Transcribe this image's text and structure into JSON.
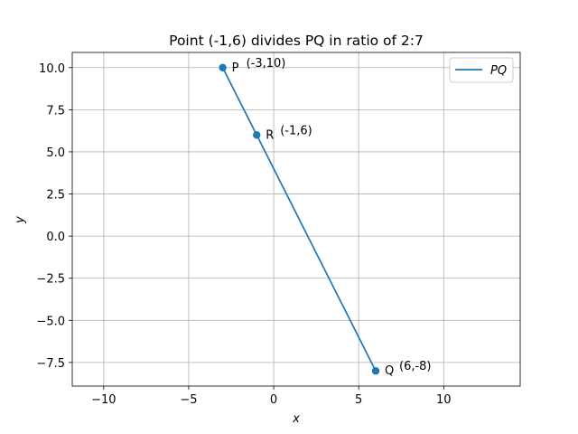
{
  "chart_data": {
    "type": "line",
    "title": "Point (-1,6) divides PQ in ratio of 2:7",
    "xlabel": "x",
    "ylabel": "y",
    "xlim": [
      -11.85,
      14.5
    ],
    "ylim": [
      -8.9,
      10.9
    ],
    "xticks": [
      -10,
      -5,
      0,
      5,
      10
    ],
    "xtick_labels": [
      "−10",
      "−5",
      "0",
      "5",
      "10"
    ],
    "yticks": [
      -7.5,
      -5.0,
      -2.5,
      0.0,
      2.5,
      5.0,
      7.5,
      10.0
    ],
    "ytick_labels": [
      "−7.5",
      "−5.0",
      "−2.5",
      "0.0",
      "2.5",
      "5.0",
      "7.5",
      "10.0"
    ],
    "grid": true,
    "legend_position": "top-right",
    "series": [
      {
        "name": "PQ",
        "x": [
          -3,
          6
        ],
        "y": [
          10,
          -8
        ],
        "color": "#1f77b4"
      }
    ],
    "points": [
      {
        "label": "P",
        "x": -3,
        "y": 10,
        "annotation": "(-3,10)"
      },
      {
        "label": "R",
        "x": -1,
        "y": 6,
        "annotation": "(-1,6)"
      },
      {
        "label": "Q",
        "x": 6,
        "y": -8,
        "annotation": "(6,-8)"
      }
    ]
  }
}
